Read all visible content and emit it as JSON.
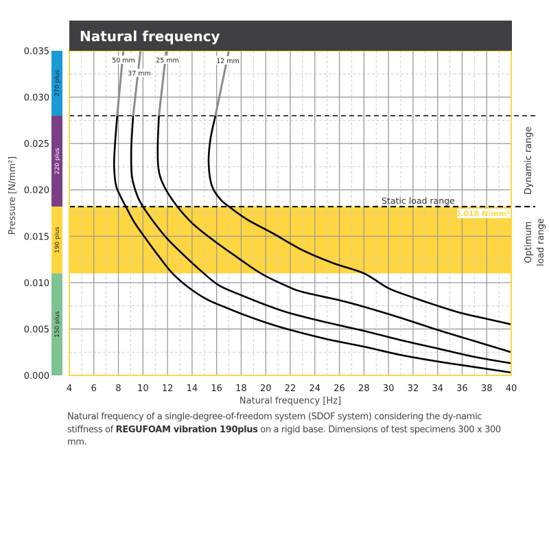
{
  "chart_data": {
    "type": "line",
    "title": "Natural frequency",
    "xlabel": "Natural frequency [Hz]",
    "ylabel": "Pressure [N/mm²]",
    "xlim": [
      4,
      40
    ],
    "ylim": [
      0,
      0.035
    ],
    "x_ticks": [
      "4",
      "6",
      "8",
      "10",
      "12",
      "14",
      "16",
      "18",
      "20",
      "22",
      "24",
      "26",
      "28",
      "30",
      "32",
      "34",
      "36",
      "38",
      "40"
    ],
    "y_ticks": [
      "0.000",
      "0.005",
      "0.010",
      "0.015",
      "0.020",
      "0.025",
      "0.030",
      "0.035"
    ],
    "grid": true,
    "product_bands": [
      {
        "label": "270 plus",
        "from": 0.028,
        "to": 0.035,
        "color": "#1a9ad6"
      },
      {
        "label": "220 plus",
        "from": 0.0182,
        "to": 0.028,
        "color": "#7b3f86"
      },
      {
        "label": "190 plus",
        "from": 0.011,
        "to": 0.0182,
        "color": "#ffd640"
      },
      {
        "label": "150 plus",
        "from": 0.0,
        "to": 0.011,
        "color": "#7fc393"
      }
    ],
    "optimum_band": {
      "from": 0.011,
      "to": 0.0182,
      "color": "#ffd640"
    },
    "lines": {
      "dynamic_limit": 0.028,
      "static_limit": 0.0182
    },
    "annotations": {
      "static_load_range": "Static load range",
      "static_value": "0.018 N/mm²",
      "dynamic_range": "Dynamic range",
      "optimum_line1": "Optimum",
      "optimum_line2": "load range"
    },
    "series": [
      {
        "name": "50 mm",
        "upper": [
          [
            8.4,
            0.035
          ],
          [
            7.9,
            0.028
          ]
        ],
        "points": [
          [
            7.9,
            0.028
          ],
          [
            7.7,
            0.0245
          ],
          [
            7.65,
            0.0225
          ],
          [
            7.8,
            0.0205
          ],
          [
            8.1,
            0.0195
          ],
          [
            8.6,
            0.0182
          ],
          [
            9.3,
            0.0165
          ],
          [
            10.2,
            0.0148
          ],
          [
            11.2,
            0.013
          ],
          [
            12.4,
            0.011
          ],
          [
            13.8,
            0.0094
          ],
          [
            15.2,
            0.0082
          ],
          [
            16.6,
            0.0074
          ],
          [
            18.1,
            0.0066
          ],
          [
            20,
            0.0057
          ],
          [
            22,
            0.0049
          ],
          [
            25,
            0.0039
          ],
          [
            28,
            0.0031
          ],
          [
            31,
            0.0022
          ],
          [
            34,
            0.0015
          ],
          [
            37,
            0.0009
          ],
          [
            40,
            0.0003
          ]
        ]
      },
      {
        "name": "37 mm",
        "upper": [
          [
            9.8,
            0.035
          ],
          [
            9.2,
            0.028
          ]
        ],
        "points": [
          [
            9.2,
            0.028
          ],
          [
            9.05,
            0.0245
          ],
          [
            9.1,
            0.0215
          ],
          [
            9.5,
            0.0195
          ],
          [
            10.0,
            0.0182
          ],
          [
            10.9,
            0.0165
          ],
          [
            12.0,
            0.0147
          ],
          [
            13.3,
            0.013
          ],
          [
            14.7,
            0.0113
          ],
          [
            16.2,
            0.0097
          ],
          [
            18.1,
            0.0086
          ],
          [
            20,
            0.0076
          ],
          [
            22,
            0.0067
          ],
          [
            25,
            0.0057
          ],
          [
            28,
            0.0048
          ],
          [
            31,
            0.0038
          ],
          [
            34,
            0.0029
          ],
          [
            37,
            0.002
          ],
          [
            40,
            0.0013
          ]
        ]
      },
      {
        "name": "25 mm",
        "upper": [
          [
            11.9,
            0.035
          ],
          [
            11.3,
            0.028
          ]
        ],
        "points": [
          [
            11.3,
            0.028
          ],
          [
            11.2,
            0.0245
          ],
          [
            11.3,
            0.022
          ],
          [
            11.8,
            0.0202
          ],
          [
            12.8,
            0.0182
          ],
          [
            14.1,
            0.0163
          ],
          [
            15.8,
            0.0145
          ],
          [
            17.6,
            0.0128
          ],
          [
            19.6,
            0.011
          ],
          [
            21.6,
            0.0097
          ],
          [
            23,
            0.009
          ],
          [
            26,
            0.0081
          ],
          [
            28,
            0.0074
          ],
          [
            31,
            0.0062
          ],
          [
            34,
            0.0049
          ],
          [
            37,
            0.0037
          ],
          [
            40,
            0.0025
          ]
        ]
      },
      {
        "name": "12 mm",
        "upper": [
          [
            17.0,
            0.035
          ],
          [
            15.9,
            0.028
          ]
        ],
        "points": [
          [
            15.9,
            0.028
          ],
          [
            15.5,
            0.0255
          ],
          [
            15.35,
            0.023
          ],
          [
            15.6,
            0.0205
          ],
          [
            16.3,
            0.019
          ],
          [
            17.0,
            0.0182
          ],
          [
            18.5,
            0.0168
          ],
          [
            20.6,
            0.0153
          ],
          [
            23,
            0.0135
          ],
          [
            25.5,
            0.0121
          ],
          [
            28,
            0.011
          ],
          [
            30,
            0.0094
          ],
          [
            32,
            0.0084
          ],
          [
            34,
            0.0075
          ],
          [
            36,
            0.0067
          ],
          [
            38,
            0.0061
          ],
          [
            40,
            0.0055
          ]
        ]
      }
    ]
  },
  "caption": {
    "part1": "Natural frequency of a single-degree-of-freedom system (SDOF system) considering the dy-namic stiffness of ",
    "bold": "REGUFOAM vibration 190plus",
    "part2": " on a rigid base. Dimensions of test specimens 300 x 300 mm."
  },
  "colors": {
    "header_bg": "#404042",
    "frame": "#ffd640",
    "grid_major": "#999999",
    "grid_minor": "#cccccc",
    "curve": "#000000",
    "curve_upper": "#8c8c8c"
  }
}
